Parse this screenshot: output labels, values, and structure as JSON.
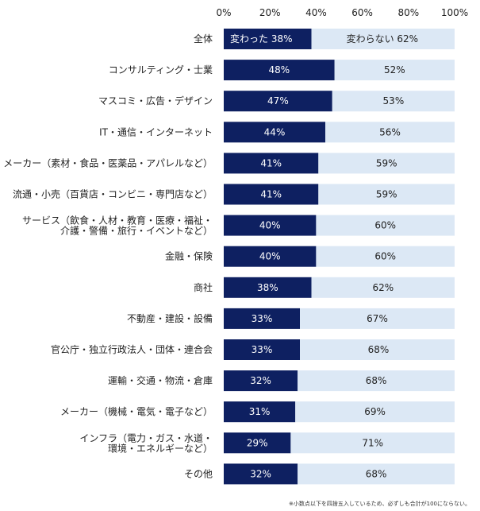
{
  "chart_data": {
    "type": "bar",
    "stacked": true,
    "orientation": "horizontal",
    "xlim": [
      0,
      100
    ],
    "tick_labels": [
      "0%",
      "20%",
      "40%",
      "60%",
      "80%",
      "100%"
    ],
    "colors": {
      "changed": "#0e2061",
      "unchanged": "#dce8f5"
    },
    "series": [
      {
        "name": "変わった",
        "values": [
          38,
          48,
          47,
          44,
          41,
          41,
          40,
          40,
          38,
          33,
          33,
          32,
          31,
          29,
          32
        ]
      },
      {
        "name": "変わらない",
        "values": [
          62,
          52,
          53,
          56,
          59,
          59,
          60,
          60,
          62,
          67,
          68,
          68,
          69,
          71,
          68
        ]
      }
    ],
    "categories": [
      [
        "全体"
      ],
      [
        "コンサルティング・士業"
      ],
      [
        "マスコミ・広告・デザイン"
      ],
      [
        "IT・通信・インターネット"
      ],
      [
        "メーカー（素材・食品・医薬品・アパレルなど）"
      ],
      [
        "流通・小売（百貨店・コンビニ・専門店など）"
      ],
      [
        "サービス（飲食・人材・教育・医療・福祉・",
        "介護・警備・旅行・イベントなど）"
      ],
      [
        "金融・保険"
      ],
      [
        "商社"
      ],
      [
        "不動産・建設・設備"
      ],
      [
        "官公庁・独立行政法人・団体・連合会"
      ],
      [
        "運輸・交通・物流・倉庫"
      ],
      [
        "メーカー（機械・電気・電子など）"
      ],
      [
        "インフラ（電力・ガス・水道・",
        "環境・エネルギーなど）"
      ],
      [
        "その他"
      ]
    ],
    "value_labels_changed": [
      "38%",
      "48%",
      "47%",
      "44%",
      "41%",
      "41%",
      "40%",
      "40%",
      "38%",
      "33%",
      "33%",
      "32%",
      "31%",
      "29%",
      "32%"
    ],
    "value_labels_unchanged": [
      "62%",
      "52%",
      "53%",
      "56%",
      "59%",
      "59%",
      "60%",
      "60%",
      "62%",
      "67%",
      "68%",
      "68%",
      "69%",
      "71%",
      "68%"
    ]
  },
  "footnote": "※小数点以下を四捨五入しているため、必ずしも合計が100にならない。"
}
